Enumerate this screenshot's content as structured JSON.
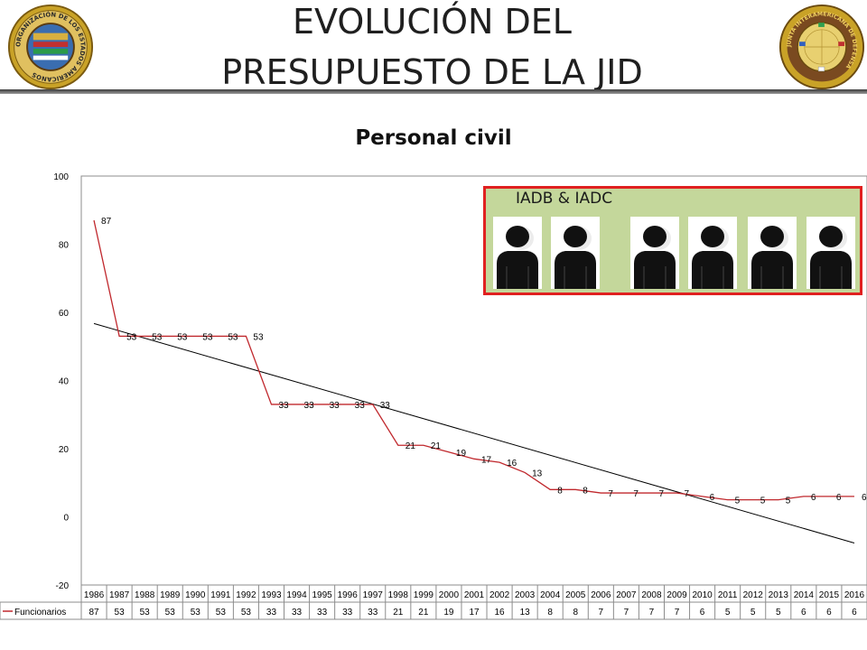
{
  "header": {
    "title_line1": "EVOLUCIÓN DEL",
    "title_line2": "PRESUPUESTO DE LA JID",
    "left_logo": "oas-seal-icon",
    "right_logo": "jid-seal-icon",
    "left_logo_text": "ORGANIZACIÓN DE LOS ESTADOS AMERICANOS",
    "right_logo_text": "JUNTA INTERAMERICANA DE DEFENSA"
  },
  "chart_data": {
    "type": "line",
    "title": "Personal civil",
    "x": [
      "1986",
      "1987",
      "1988",
      "1989",
      "1990",
      "1991",
      "1992",
      "1993",
      "1994",
      "1995",
      "1996",
      "1997",
      "1998",
      "1999",
      "2000",
      "2001",
      "2002",
      "2003",
      "2004",
      "2005",
      "2006",
      "2007",
      "2008",
      "2009",
      "2010",
      "2011",
      "2012",
      "2013",
      "2014",
      "2015",
      "2016"
    ],
    "series": [
      {
        "name": "Funcionarios",
        "color": "#c0282d",
        "values": [
          87,
          53,
          53,
          53,
          53,
          53,
          53,
          33,
          33,
          33,
          33,
          33,
          21,
          21,
          19,
          17,
          16,
          13,
          8,
          8,
          7,
          7,
          7,
          7,
          6,
          5,
          5,
          5,
          6,
          6,
          6
        ]
      }
    ],
    "trendline": {
      "type": "linear",
      "color": "#000000"
    },
    "ylim": [
      -20,
      100
    ],
    "yticks": [
      -20,
      0,
      20,
      40,
      60,
      80,
      100
    ],
    "grid": false,
    "legend": "data-table-bottom",
    "data_table": true
  },
  "inset": {
    "label": "IADB & IADC",
    "icon": "person-silhouette-icon",
    "background": "#c4d79b",
    "border": "#e02020"
  }
}
